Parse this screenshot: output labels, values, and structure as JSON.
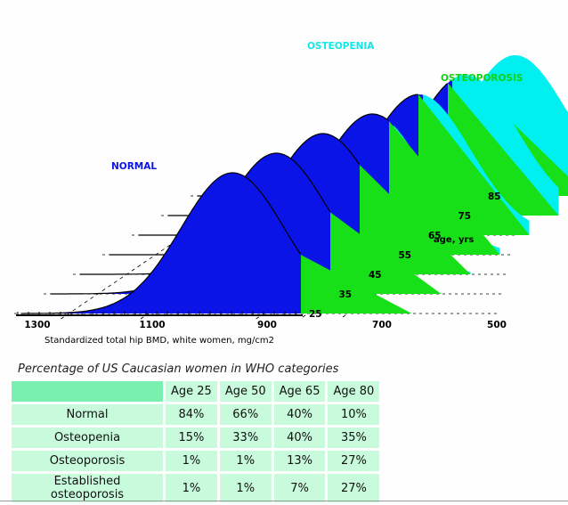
{
  "chart_data": {
    "type": "area",
    "title": "",
    "xlabel": "Standardized total hip BMD, white women, mg/cm2",
    "x_ticks": [
      "1300",
      "1100",
      "900",
      "700",
      "500"
    ],
    "ylabel": "age, yrs",
    "depth_ticks": [
      "25",
      "35",
      "45",
      "55",
      "65",
      "75",
      "85"
    ],
    "region_labels": {
      "normal": "NORMAL",
      "osteopenia": "OSTEOPENIA",
      "osteoporosis": "OSTEOPOROSIS"
    },
    "colors": {
      "normal": "#0a14e6",
      "osteopenia": "#00f0f0",
      "osteoporosis": "#18e018"
    },
    "series": [
      {
        "age": 25,
        "peak_bmd": 960
      },
      {
        "age": 35,
        "peak_bmd": 935
      },
      {
        "age": 45,
        "peak_bmd": 905
      },
      {
        "age": 55,
        "peak_bmd": 870
      },
      {
        "age": 65,
        "peak_bmd": 840
      },
      {
        "age": 75,
        "peak_bmd": 810
      },
      {
        "age": 85,
        "peak_bmd": 775
      }
    ],
    "thresholds_bmd": {
      "osteopenia_upper": 833,
      "osteoporosis_upper": 648
    }
  },
  "table": {
    "caption": "Percentage of US Caucasian women in WHO categories",
    "headers": [
      "Age 25",
      "Age 50",
      "Age 65",
      "Age 80"
    ],
    "rows": [
      {
        "label": "Normal",
        "values": [
          "84%",
          "66%",
          "40%",
          "10%"
        ]
      },
      {
        "label": "Osteopenia",
        "values": [
          "15%",
          "33%",
          "40%",
          "35%"
        ]
      },
      {
        "label": "Osteoporosis",
        "values": [
          "1%",
          "1%",
          "13%",
          "27%"
        ]
      },
      {
        "label": "Established osteoporosis",
        "values": [
          "1%",
          "1%",
          "7%",
          "27%"
        ]
      }
    ]
  }
}
